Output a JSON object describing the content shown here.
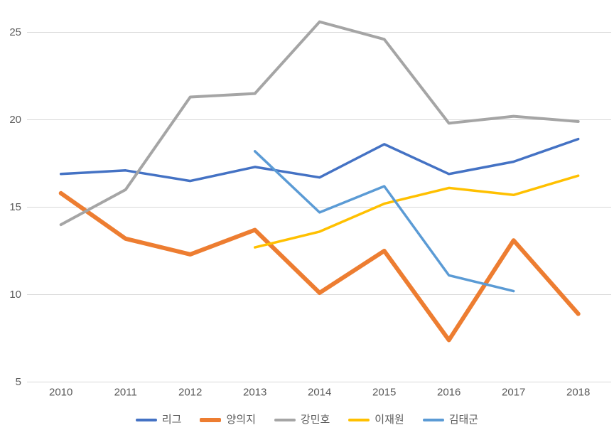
{
  "chart_data": {
    "type": "line",
    "title": "",
    "xlabel": "",
    "ylabel": "",
    "categories": [
      "2010",
      "2011",
      "2012",
      "2013",
      "2014",
      "2015",
      "2016",
      "2017",
      "2018"
    ],
    "y_ticks": [
      "5",
      "10",
      "15",
      "20",
      "25"
    ],
    "ylim": [
      5,
      26.5
    ],
    "grid": true,
    "legend_position": "bottom",
    "series": [
      {
        "name": "리그",
        "color": "#4472C4",
        "thickness": 3.5,
        "values": [
          16.9,
          17.1,
          16.5,
          17.3,
          16.7,
          18.6,
          16.9,
          17.6,
          18.9
        ]
      },
      {
        "name": "양의지",
        "color": "#ED7D31",
        "thickness": 6,
        "values": [
          15.8,
          13.2,
          12.3,
          13.7,
          10.1,
          12.5,
          7.4,
          13.1,
          8.9
        ]
      },
      {
        "name": "강민호",
        "color": "#A5A5A5",
        "thickness": 4,
        "values": [
          14.0,
          16.0,
          21.3,
          21.5,
          25.6,
          24.6,
          19.8,
          20.2,
          19.9
        ]
      },
      {
        "name": "이재원",
        "color": "#FFC000",
        "thickness": 3.5,
        "values": [
          null,
          null,
          null,
          12.7,
          13.6,
          15.2,
          16.1,
          15.7,
          16.8
        ]
      },
      {
        "name": "김태군",
        "color": "#5B9BD5",
        "thickness": 3.5,
        "values": [
          null,
          null,
          null,
          18.2,
          14.7,
          16.2,
          11.1,
          10.2,
          null
        ]
      }
    ],
    "colors": {
      "gridline": "#D9D9D9",
      "axis_text": "#595959",
      "background": "#FFFFFF"
    }
  }
}
